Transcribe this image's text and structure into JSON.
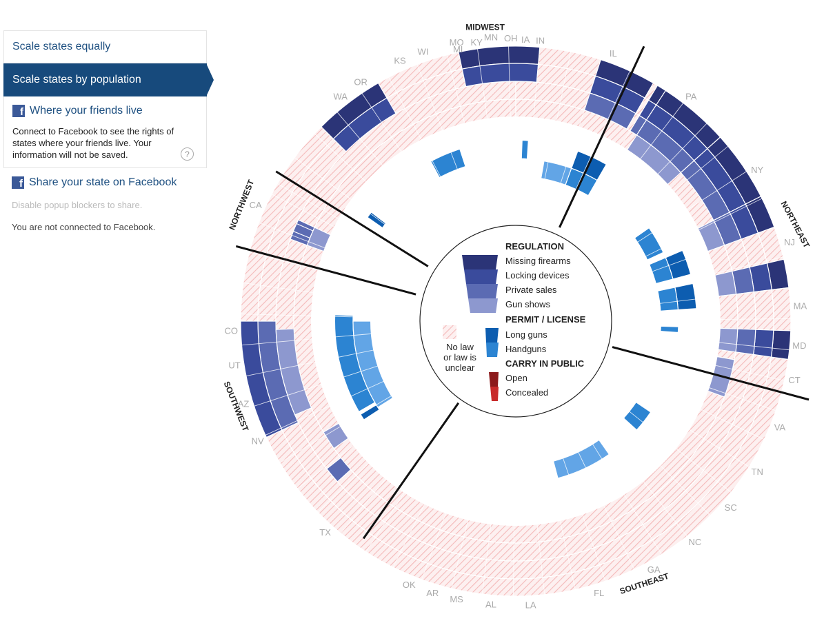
{
  "sidebar": {
    "options": [
      "Scale states equally",
      "Scale states by population"
    ],
    "active_option": "Scale states by population",
    "friends_label": "Where your friends live",
    "friends_note": "Connect to Facebook to see the rights of states where your friends live. Your information will not be saved.",
    "help_glyph": "?",
    "share_label": "Share your state on Facebook",
    "share_note": "Disable popup blockers to share.",
    "status": "You are not connected to Facebook.",
    "fb_glyph": "f"
  },
  "colors": {
    "missing_firearms": "#2b3477",
    "locking_devices": "#3a4b9c",
    "private_sales": "#5b6bb3",
    "gun_shows": "#8d98cf",
    "long_guns": "#0d5db0",
    "handguns": "#2c84d2",
    "handguns_light": "#62a5e6",
    "open": "#8c1a1c",
    "concealed": "#c82b2b",
    "hatch": "#f4b9b9",
    "hatch_bg": "#fdf0f0",
    "sidebar_active": "#174a7c"
  },
  "chart_data": {
    "type": "radial",
    "title": "",
    "regions": [
      "MIDWEST",
      "NORTHEAST",
      "SOUTHEAST",
      "SOUTHWEST",
      "NORTHWEST"
    ],
    "states": [
      "IN",
      "IL",
      "PA",
      "NY",
      "NJ",
      "MA",
      "MD",
      "CT",
      "VA",
      "TN",
      "SC",
      "NC",
      "GA",
      "FL",
      "LA",
      "AL",
      "MS",
      "AR",
      "OK",
      "TX",
      "NV",
      "AZ",
      "UT",
      "CO",
      "CA",
      "WA",
      "OR",
      "KS",
      "WI",
      "MO",
      "MN",
      "MI",
      "KY",
      "OH",
      "IA"
    ],
    "legend": {
      "regulation_title": "REGULATION",
      "regulation": [
        "Missing firearms",
        "Locking devices",
        "Private sales",
        "Gun shows"
      ],
      "permit_title": "PERMIT / LICENSE",
      "permit": [
        "Long guns",
        "Handguns"
      ],
      "carry_title": "CARRY IN PUBLIC",
      "carry": [
        "Open",
        "Concealed"
      ],
      "nolaw": "No law or law is unclear",
      "nolaw_lines": [
        "No law",
        "or law is",
        "unclear"
      ]
    }
  }
}
